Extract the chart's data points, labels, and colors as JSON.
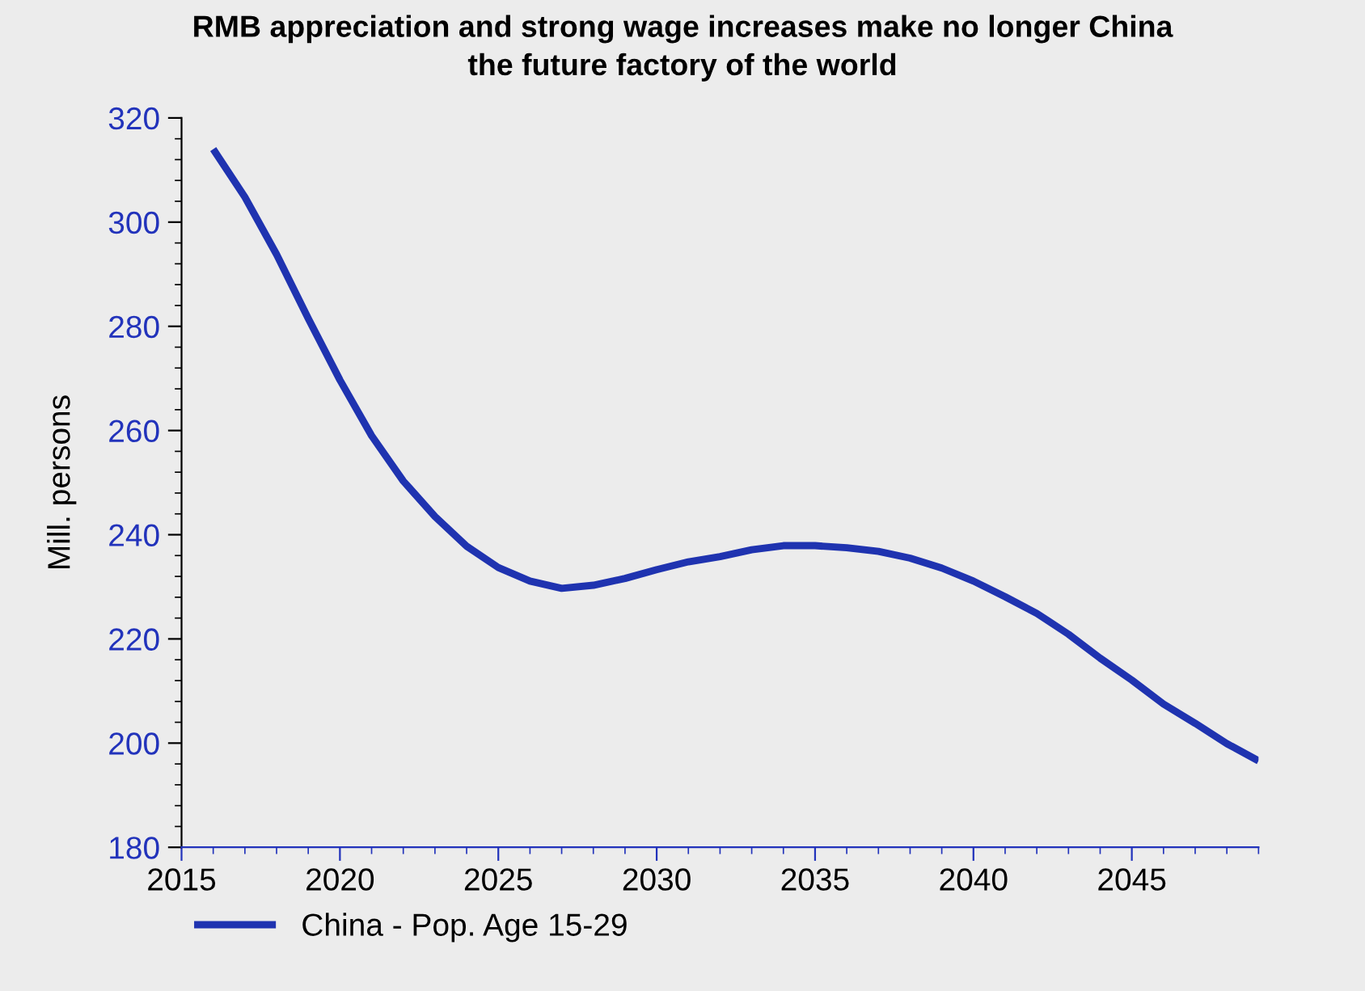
{
  "chart_data": {
    "type": "line",
    "title": "RMB appreciation and strong wage increases make no longer China\nthe future factory of the world",
    "ylabel": "Mill. persons",
    "x": [
      2016,
      2017,
      2018,
      2019,
      2020,
      2021,
      2022,
      2023,
      2024,
      2025,
      2026,
      2027,
      2028,
      2029,
      2030,
      2031,
      2032,
      2033,
      2034,
      2035,
      2036,
      2037,
      2038,
      2039,
      2040,
      2041,
      2042,
      2043,
      2044,
      2045,
      2046,
      2047,
      2048,
      2049
    ],
    "series": [
      {
        "name": "China - Pop. Age 15-29",
        "color": "#1f33b0",
        "values": [
          314,
          304.8,
          293.8,
          281.5,
          269.7,
          259,
          250.3,
          243.5,
          237.8,
          233.7,
          231.1,
          229.7,
          230.3,
          231.6,
          233.3,
          234.8,
          235.8,
          237.1,
          237.9,
          237.9,
          237.5,
          236.8,
          235.5,
          233.6,
          231.1,
          228.1,
          224.9,
          220.9,
          216.3,
          212.1,
          207.5,
          203.8,
          199.9,
          196.6
        ]
      }
    ],
    "xlim": [
      2015,
      2049
    ],
    "xticks": [
      2015,
      2020,
      2025,
      2030,
      2035,
      2040,
      2045
    ],
    "ylim": [
      180,
      320
    ],
    "yticks": [
      180,
      200,
      220,
      240,
      260,
      280,
      300,
      320
    ],
    "grid": false,
    "legend": "bottom",
    "marker": "none",
    "line_style": "solid"
  }
}
